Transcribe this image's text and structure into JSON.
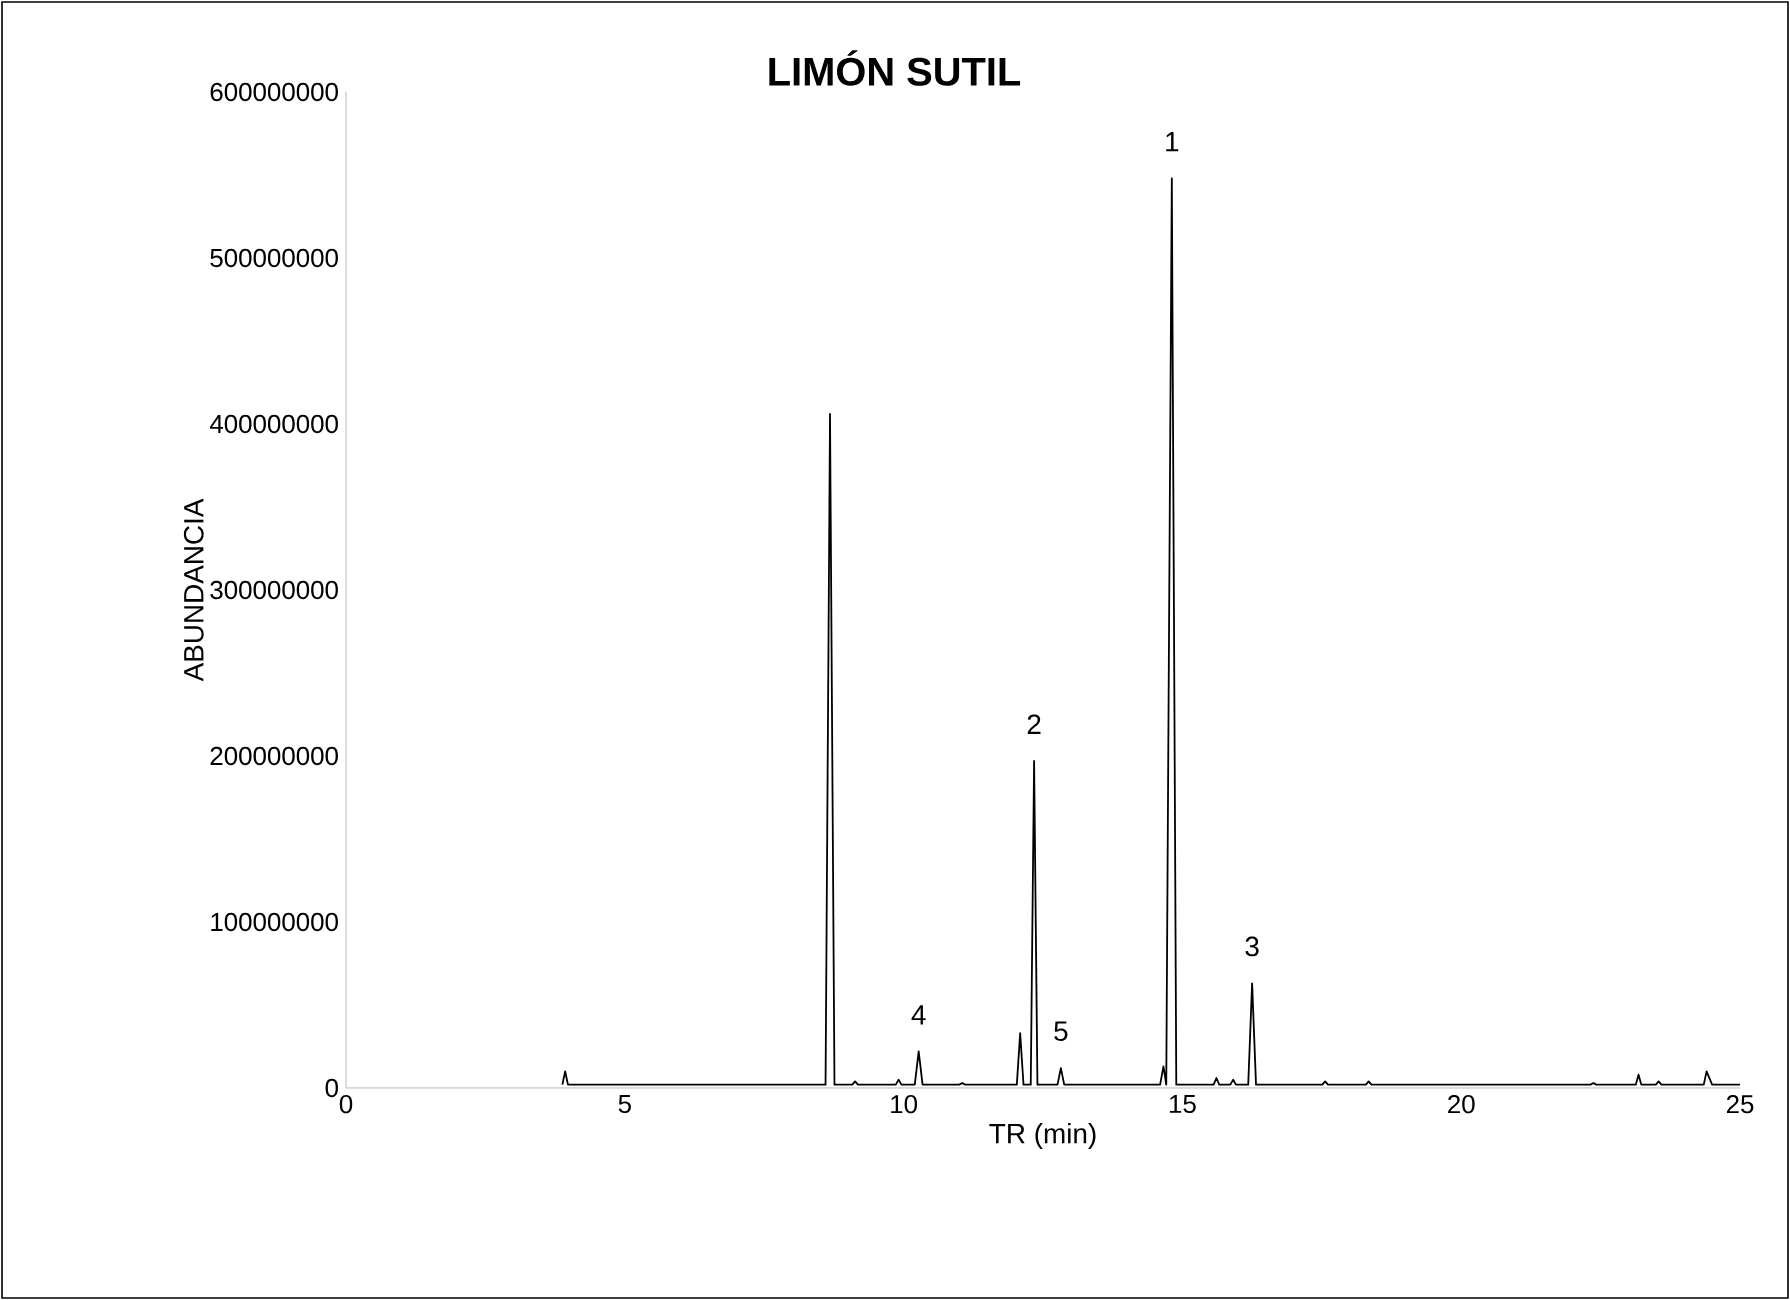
{
  "chart_data": {
    "type": "line",
    "title": "LIMÓN SUTIL",
    "xlabel": "TR (min)",
    "ylabel": "ABUNDANCIA",
    "x": [
      3.88,
      3.93,
      3.98,
      8.6,
      8.68,
      8.76,
      9.08,
      9.13,
      9.18,
      9.86,
      9.91,
      9.96,
      10.2,
      10.27,
      10.34,
      11.0,
      11.05,
      11.1,
      12.03,
      12.09,
      12.15,
      12.28,
      12.34,
      12.4,
      12.76,
      12.82,
      12.88,
      14.6,
      14.66,
      14.71,
      14.81,
      14.89,
      15.56,
      15.61,
      15.66,
      15.86,
      15.91,
      15.96,
      16.18,
      16.25,
      16.32,
      17.51,
      17.56,
      17.61,
      18.29,
      18.34,
      18.39,
      22.32,
      22.37,
      22.42,
      23.13,
      23.18,
      23.23,
      23.49,
      23.54,
      23.59,
      24.35,
      24.4,
      24.5,
      25.0
    ],
    "series": [
      {
        "color": "#000000",
        "values": [
          2000000,
          10000000,
          2000000,
          2000000,
          406000000,
          2000000,
          2000000,
          4000000,
          2000000,
          2000000,
          5000000,
          2000000,
          2000000,
          22000000,
          2000000,
          2000000,
          3000000,
          2000000,
          2000000,
          33000000,
          2000000,
          2000000,
          197000000,
          2000000,
          2000000,
          12000000,
          2000000,
          2000000,
          13000000,
          2000000,
          548000000,
          2000000,
          2000000,
          6000000,
          2000000,
          2000000,
          5000000,
          2000000,
          2000000,
          63000000,
          2000000,
          2000000,
          4000000,
          2000000,
          2000000,
          4000000,
          2000000,
          2000000,
          3000000,
          2000000,
          2000000,
          8000000,
          2000000,
          2000000,
          4000000,
          2000000,
          2000000,
          10000000,
          2000000,
          2000000
        ]
      }
    ],
    "xlim": [
      0,
      25
    ],
    "xticks": [
      0,
      5,
      10,
      15,
      20,
      25
    ],
    "ylim": [
      0,
      600000000
    ],
    "yticks": [
      0,
      100000000,
      200000000,
      300000000,
      400000000,
      500000000,
      600000000
    ],
    "grid": false,
    "marker": "none",
    "line_style": "solid",
    "annotations": [
      {
        "text": "1",
        "x": 14.81,
        "y": 548000000
      },
      {
        "text": "2",
        "x": 12.34,
        "y": 197000000
      },
      {
        "text": "3",
        "x": 16.25,
        "y": 63000000
      },
      {
        "text": "4",
        "x": 10.27,
        "y": 22000000
      },
      {
        "text": "5",
        "x": 12.82,
        "y": 12000000
      }
    ]
  }
}
